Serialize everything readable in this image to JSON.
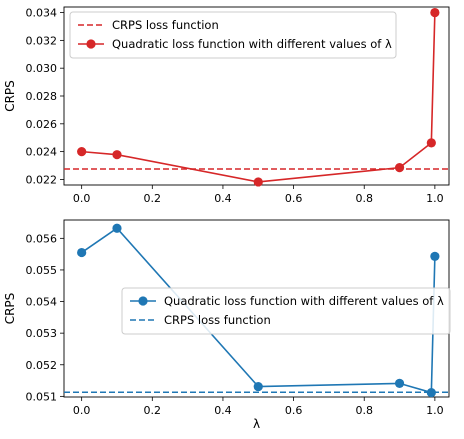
{
  "chart_data": [
    {
      "type": "line",
      "ylabel": "CRPS",
      "xlabel": "",
      "xlim": [
        -0.05,
        1.04
      ],
      "ylim": [
        0.0216,
        0.0344
      ],
      "xticks": [
        0.0,
        0.2,
        0.4,
        0.6,
        0.8,
        1.0
      ],
      "xtick_labels": [
        "0.0",
        "0.2",
        "0.4",
        "0.6",
        "0.8",
        "1.0"
      ],
      "yticks": [
        0.022,
        0.024,
        0.026,
        0.028,
        0.03,
        0.032,
        0.034
      ],
      "ytick_labels": [
        "0.022",
        "0.024",
        "0.026",
        "0.028",
        "0.030",
        "0.032",
        "0.034"
      ],
      "legend_position": "top-left",
      "legend_order": [
        "hline",
        "series"
      ],
      "hline": {
        "name": "CRPS loss function",
        "y": 0.02275,
        "color": "#d62728"
      },
      "series": [
        {
          "name": "Quadratic loss function with different values of λ",
          "color": "#d62728",
          "x": [
            0.0,
            0.1,
            0.5,
            0.9,
            0.99,
            1.0
          ],
          "y": [
            0.024,
            0.02378,
            0.02182,
            0.02285,
            0.02463,
            0.034
          ]
        }
      ]
    },
    {
      "type": "line",
      "ylabel": "CRPS",
      "xlabel": "λ",
      "xlim": [
        -0.05,
        1.04
      ],
      "ylim": [
        0.05098,
        0.05658
      ],
      "xticks": [
        0.0,
        0.2,
        0.4,
        0.6,
        0.8,
        1.0
      ],
      "xtick_labels": [
        "0.0",
        "0.2",
        "0.4",
        "0.6",
        "0.8",
        "1.0"
      ],
      "yticks": [
        0.051,
        0.052,
        0.053,
        0.054,
        0.055,
        0.056
      ],
      "ytick_labels": [
        "0.051",
        "0.052",
        "0.053",
        "0.054",
        "0.055",
        "0.056"
      ],
      "legend_position": "center-right",
      "legend_order": [
        "series",
        "hline"
      ],
      "hline": {
        "name": "CRPS loss function",
        "y": 0.05113,
        "color": "#1f77b4"
      },
      "series": [
        {
          "name": "Quadratic loss function with different values of λ",
          "color": "#1f77b4",
          "x": [
            0.0,
            0.1,
            0.5,
            0.9,
            0.99,
            1.0
          ],
          "y": [
            0.05555,
            0.05632,
            0.05131,
            0.05141,
            0.05112,
            0.05543
          ]
        }
      ]
    }
  ]
}
